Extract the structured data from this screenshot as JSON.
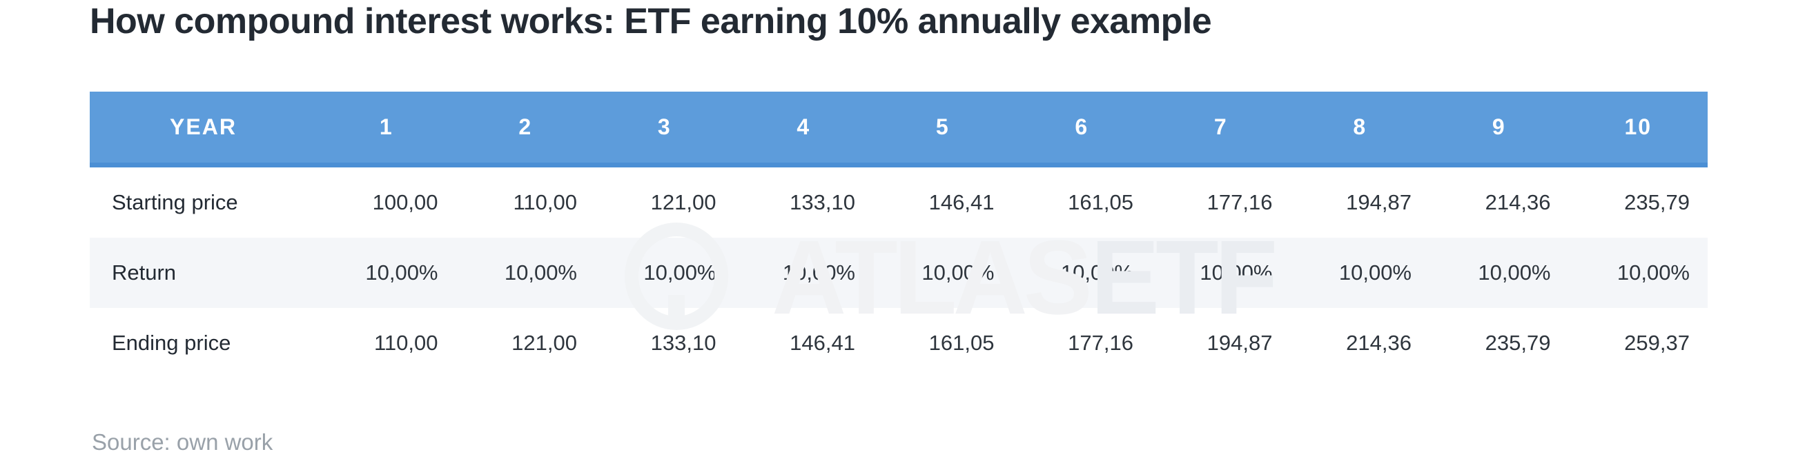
{
  "title": "How compound interest works: ETF earning 10% annually example",
  "source_note": "Source: own work",
  "watermark": {
    "brand_atlas": "ATLAS",
    "brand_etf": "ETF"
  },
  "colors": {
    "header_bg": "#5d9cdb",
    "header_border": "#4b8fd4",
    "header_text": "#ffffff",
    "band_row_bg": "#f4f6f9",
    "title_text": "#232a33",
    "body_text": "#2e353d",
    "source_text": "#99a1a9",
    "background": "#ffffff"
  },
  "table": {
    "header": [
      "YEAR",
      "1",
      "2",
      "3",
      "4",
      "5",
      "6",
      "7",
      "8",
      "9",
      "10"
    ],
    "rows": [
      {
        "label": "Starting price",
        "values": [
          "100,00",
          "110,00",
          "121,00",
          "133,10",
          "146,41",
          "161,05",
          "177,16",
          "194,87",
          "214,36",
          "235,79"
        ]
      },
      {
        "label": "Return",
        "values": [
          "10,00%",
          "10,00%",
          "10,00%",
          "10,00%",
          "10,00%",
          "10,00%",
          "10,00%",
          "10,00%",
          "10,00%",
          "10,00%"
        ]
      },
      {
        "label": "Ending price",
        "values": [
          "110,00",
          "121,00",
          "133,10",
          "146,41",
          "161,05",
          "177,16",
          "194,87",
          "214,36",
          "235,79",
          "259,37"
        ]
      }
    ]
  },
  "chart_data": {
    "type": "table",
    "title": "How compound interest works: ETF earning 10% annually example",
    "categories_label": "YEAR",
    "categories": [
      1,
      2,
      3,
      4,
      5,
      6,
      7,
      8,
      9,
      10
    ],
    "series": [
      {
        "name": "Starting price",
        "values": [
          100.0,
          110.0,
          121.0,
          133.1,
          146.41,
          161.05,
          177.16,
          194.87,
          214.36,
          235.79
        ]
      },
      {
        "name": "Return (%)",
        "values": [
          10,
          10,
          10,
          10,
          10,
          10,
          10,
          10,
          10,
          10
        ]
      },
      {
        "name": "Ending price",
        "values": [
          110.0,
          121.0,
          133.1,
          146.41,
          161.05,
          177.16,
          194.87,
          214.36,
          235.79,
          259.37
        ]
      }
    ],
    "number_format": "comma-decimal",
    "legend_position": "none",
    "grid": false,
    "source": "Source: own work"
  }
}
